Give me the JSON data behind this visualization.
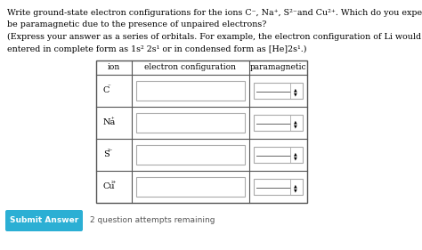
{
  "bg_color": "#ffffff",
  "title_lines": [
    "Write ground-state electron configurations for the ions C⁻, Na⁺, S²⁻and Cu²⁺. Which do you expect will",
    "be paramagnetic due to the presence of unpaired electrons?",
    "(Express your answer as a series of orbitals. For example, the electron configuration of Li would be",
    "entered in complete form as 1s² 2s¹ or in condensed form as [He]2s¹.)"
  ],
  "col_headers": [
    "ion",
    "electron configuration",
    "paramagnetic"
  ],
  "row_ions_base": [
    "C",
    "Na",
    "S",
    "Cu"
  ],
  "row_ions_super": [
    "⁻",
    "⁺",
    "²⁻",
    "²⁺"
  ],
  "submit_label": "Submit Answer",
  "attempts_label": "2 question attempts remaining",
  "submit_bg": "#2bafd4",
  "submit_text_color": "#ffffff",
  "font_size_title": 6.8,
  "font_size_table": 6.5,
  "font_size_ion": 7.0
}
